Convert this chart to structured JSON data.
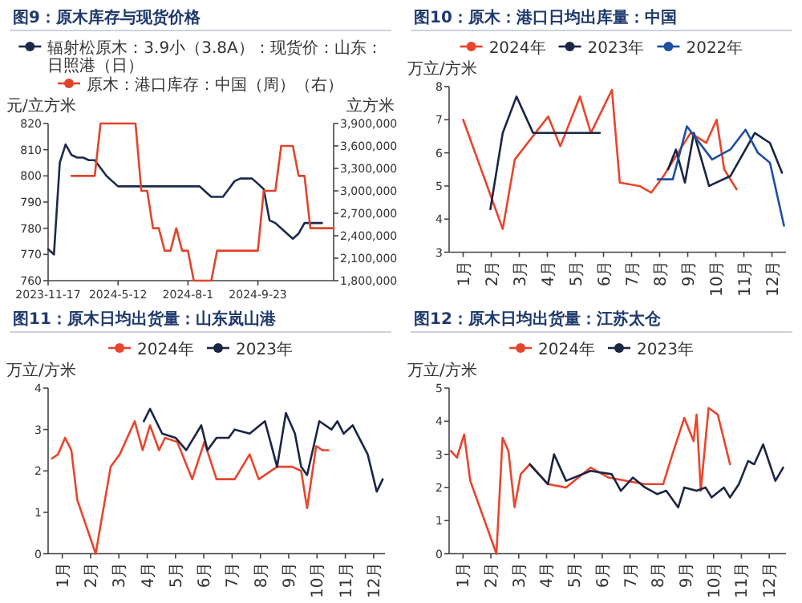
{
  "chart_data": [
    {
      "type": "line",
      "title": "图9：原木库存与现货价格",
      "ylabel": "元/立方米",
      "y2label": "立方米",
      "legend": "top",
      "categories": [
        "2023-11-17",
        null,
        null,
        null,
        null,
        null,
        null,
        null,
        null,
        null,
        null,
        null,
        "2024-5-12",
        null,
        null,
        null,
        null,
        null,
        null,
        null,
        null,
        null,
        null,
        null,
        "2024-8-1",
        null,
        null,
        null,
        null,
        null,
        null,
        null,
        null,
        null,
        null,
        null,
        "2024-9-23",
        null,
        null,
        null,
        null,
        null,
        null,
        null,
        null,
        null,
        null,
        null,
        null,
        null
      ],
      "ylim": [
        760,
        820
      ],
      "yticks": [
        760,
        770,
        780,
        790,
        800,
        810,
        820
      ],
      "y2lim": [
        1800000,
        3900000
      ],
      "y2ticks": [
        {
          "value": 1800000,
          "label": "1,800,000"
        },
        {
          "value": 2100000,
          "label": "2,100,000"
        },
        {
          "value": 2400000,
          "label": "2,400,000"
        },
        {
          "value": 2700000,
          "label": "2,700,000"
        },
        {
          "value": 3000000,
          "label": "3,000,000"
        },
        {
          "value": 3300000,
          "label": "3,300,000"
        },
        {
          "value": 3600000,
          "label": "3,600,000"
        },
        {
          "value": 3900000,
          "label": "3,900,000"
        }
      ],
      "series": [
        {
          "name": "辐射松原木：3.9小（3.8A）：现货价：山东：日照港（日）",
          "color": "#1c2a4a",
          "values": [
            772,
            770,
            805,
            812,
            808,
            807,
            807,
            806,
            806,
            803,
            800,
            798,
            796,
            796,
            796,
            796,
            796,
            796,
            796,
            796,
            796,
            796,
            796,
            796,
            796,
            796,
            796,
            794,
            792,
            792,
            792,
            795,
            798,
            799,
            799,
            799,
            797,
            795,
            783,
            782,
            780,
            778,
            776,
            778,
            782,
            782,
            782,
            782,
            null,
            null
          ]
        },
        {
          "name": "原木：港口库存：中国（周）（右）",
          "color": "#e0452b",
          "axis": "y2",
          "values": [
            null,
            null,
            null,
            null,
            3200000,
            3200000,
            3200000,
            3200000,
            3200000,
            3900000,
            3900000,
            3900000,
            3900000,
            3900000,
            3900000,
            3900000,
            3000000,
            3000000,
            2500000,
            2500000,
            2200000,
            2200000,
            2500000,
            2200000,
            2200000,
            1800000,
            1800000,
            1800000,
            1800000,
            2200000,
            2200000,
            2200000,
            2200000,
            2200000,
            2200000,
            2200000,
            2200000,
            3000000,
            3000000,
            3000000,
            3600000,
            3600000,
            3600000,
            3200000,
            3200000,
            2500000,
            2500000,
            2500000,
            2500000,
            2500000
          ]
        }
      ]
    },
    {
      "type": "line",
      "title": "图10：原木：港口日均出库量：中国",
      "ylabel": "万立/方米",
      "legend": "top",
      "xlim": [
        0.5,
        12.5
      ],
      "xticks": [
        {
          "value": 1,
          "label": "1月"
        },
        {
          "value": 2,
          "label": "2月"
        },
        {
          "value": 3,
          "label": "3月"
        },
        {
          "value": 4,
          "label": "4月"
        },
        {
          "value": 5,
          "label": "5月"
        },
        {
          "value": 6,
          "label": "6月"
        },
        {
          "value": 7,
          "label": "7月"
        },
        {
          "value": 8,
          "label": "8月"
        },
        {
          "value": 9,
          "label": "9月"
        },
        {
          "value": 10,
          "label": "10月"
        },
        {
          "value": 11,
          "label": "11月"
        },
        {
          "value": 12,
          "label": "12月"
        }
      ],
      "ylim": [
        3,
        8
      ],
      "yticks": [
        3,
        4,
        5,
        6,
        7,
        8
      ],
      "series": [
        {
          "name": "2024年",
          "color": "#e8452c",
          "x": [
            1,
            2.41,
            2.84,
            4.03,
            4.46,
            5.16,
            5.55,
            6.3,
            6.58,
            7.28,
            7.7,
            8.14,
            9.1,
            9.66,
            10.03,
            10.3,
            10.74
          ],
          "values": [
            7.0,
            3.7,
            5.8,
            7.1,
            6.2,
            7.7,
            6.6,
            7.9,
            5.1,
            5.0,
            4.8,
            5.3,
            6.6,
            6.3,
            7.0,
            5.5,
            4.9
          ]
        },
        {
          "name": "2023年",
          "color": "#1b2545",
          "x": [
            1.97,
            2.41,
            2.9,
            3.49,
            5.55,
            5.87,
            7.0,
            8.3,
            8.58,
            8.9,
            9.22,
            9.76,
            10.52,
            11.39,
            11.93,
            12.36
          ],
          "values": [
            4.3,
            6.6,
            7.7,
            6.6,
            6.6,
            6.6,
            null,
            5.5,
            6.1,
            5.1,
            6.6,
            5.0,
            5.3,
            6.6,
            6.3,
            5.4
          ]
        },
        {
          "name": "2022年",
          "color": "#1d4fa3",
          "x": [
            7.93,
            8.47,
            8.97,
            9.87,
            10.52,
            11.06,
            11.5,
            11.93,
            12.43
          ],
          "values": [
            5.2,
            5.2,
            6.8,
            5.8,
            6.1,
            6.7,
            6.0,
            5.7,
            3.8
          ]
        }
      ]
    },
    {
      "type": "line",
      "title": "图11：原木日均出货量：山东岚山港",
      "ylabel": "万立/方米",
      "legend": "top",
      "xlim": [
        0.5,
        12.4
      ],
      "xticks": [
        {
          "value": 1,
          "label": "1月"
        },
        {
          "value": 2,
          "label": "2月"
        },
        {
          "value": 3,
          "label": "3月"
        },
        {
          "value": 4,
          "label": "4月"
        },
        {
          "value": 5,
          "label": "5月"
        },
        {
          "value": 6,
          "label": "6月"
        },
        {
          "value": 7,
          "label": "7月"
        },
        {
          "value": 8,
          "label": "8月"
        },
        {
          "value": 9,
          "label": "9月"
        },
        {
          "value": 10,
          "label": "10月"
        },
        {
          "value": 11,
          "label": "11月"
        },
        {
          "value": 12,
          "label": "12月"
        }
      ],
      "ylim": [
        0,
        4
      ],
      "yticks": [
        0,
        1,
        2,
        3,
        4
      ],
      "series": [
        {
          "name": "2024年",
          "color": "#e8452c",
          "x": [
            0.64,
            0.85,
            1.1,
            1.32,
            1.53,
            2.18,
            2.71,
            3.03,
            3.56,
            3.84,
            4.1,
            4.42,
            4.63,
            5.06,
            5.59,
            6.02,
            6.45,
            7.09,
            7.62,
            7.94,
            8.59,
            9.12,
            9.44,
            9.65,
            9.97,
            10.19,
            10.4
          ],
          "values": [
            2.3,
            2.4,
            2.8,
            2.5,
            1.3,
            0,
            2.1,
            2.4,
            3.2,
            2.5,
            3.1,
            2.5,
            2.8,
            2.7,
            1.8,
            2.7,
            1.8,
            1.8,
            2.4,
            1.8,
            2.1,
            2.1,
            2.0,
            1.1,
            2.6,
            2.5,
            2.5
          ]
        },
        {
          "name": "2023年",
          "color": "#1b2545",
          "x": [
            3.88,
            4.1,
            4.53,
            5.0,
            5.38,
            5.91,
            6.13,
            6.45,
            6.88,
            7.09,
            7.62,
            8.16,
            8.59,
            8.9,
            9.22,
            9.44,
            9.65,
            10.08,
            10.51,
            10.72,
            10.94,
            11.26,
            11.79,
            12.11,
            12.32
          ],
          "values": [
            3.2,
            3.5,
            2.9,
            2.8,
            2.5,
            3.1,
            2.5,
            2.8,
            2.8,
            3.0,
            2.9,
            3.2,
            2.1,
            3.4,
            2.9,
            2.1,
            1.9,
            3.2,
            3.0,
            3.2,
            2.9,
            3.1,
            2.4,
            1.5,
            1.8
          ]
        }
      ]
    },
    {
      "type": "line",
      "title": "图12：原木日均出货量：江苏太仓",
      "ylabel": "万立/方米",
      "legend": "top",
      "xlim": [
        0.5,
        12.6
      ],
      "xticks": [
        {
          "value": 1,
          "label": "1月"
        },
        {
          "value": 2,
          "label": "2月"
        },
        {
          "value": 3,
          "label": "3月"
        },
        {
          "value": 4,
          "label": "4月"
        },
        {
          "value": 5,
          "label": "5月"
        },
        {
          "value": 6,
          "label": "6月"
        },
        {
          "value": 7,
          "label": "7月"
        },
        {
          "value": 8,
          "label": "8月"
        },
        {
          "value": 9,
          "label": "9月"
        },
        {
          "value": 10,
          "label": "10月"
        },
        {
          "value": 11,
          "label": "11月"
        },
        {
          "value": 12,
          "label": "12月"
        }
      ],
      "ylim": [
        0,
        5
      ],
      "yticks": [
        0,
        1,
        2,
        3,
        4,
        5
      ],
      "series": [
        {
          "name": "2024年",
          "color": "#e8452c",
          "x": [
            0.56,
            0.78,
            1.04,
            1.26,
            2.2,
            2.42,
            2.63,
            2.85,
            3.07,
            3.4,
            4.05,
            4.7,
            5.58,
            6.23,
            6.88,
            7.54,
            8.19,
            8.52,
            8.95,
            9.28,
            9.39,
            9.54,
            9.82,
            10.15,
            10.59
          ],
          "values": [
            3.1,
            2.9,
            3.6,
            2.2,
            0,
            3.5,
            3.1,
            1.4,
            2.4,
            2.7,
            2.1,
            2.0,
            2.6,
            2.3,
            2.2,
            2.1,
            2.1,
            3.0,
            4.1,
            3.4,
            4.2,
            1.9,
            4.4,
            4.2,
            2.7
          ]
        },
        {
          "name": "2023年",
          "color": "#1b2545",
          "x": [
            3.4,
            4.05,
            4.27,
            4.7,
            5.58,
            6.34,
            6.67,
            7.1,
            7.54,
            7.97,
            8.3,
            8.73,
            8.95,
            9.39,
            9.71,
            9.93,
            10.37,
            10.59,
            10.91,
            11.24,
            11.46,
            11.78,
            12.22,
            12.5
          ],
          "values": [
            2.7,
            2.1,
            3.0,
            2.2,
            2.5,
            2.4,
            1.9,
            2.3,
            2.0,
            1.8,
            1.9,
            1.4,
            2.0,
            1.9,
            2.0,
            1.7,
            2.0,
            1.7,
            2.1,
            2.8,
            2.7,
            3.3,
            2.2,
            2.6
          ]
        }
      ]
    }
  ]
}
